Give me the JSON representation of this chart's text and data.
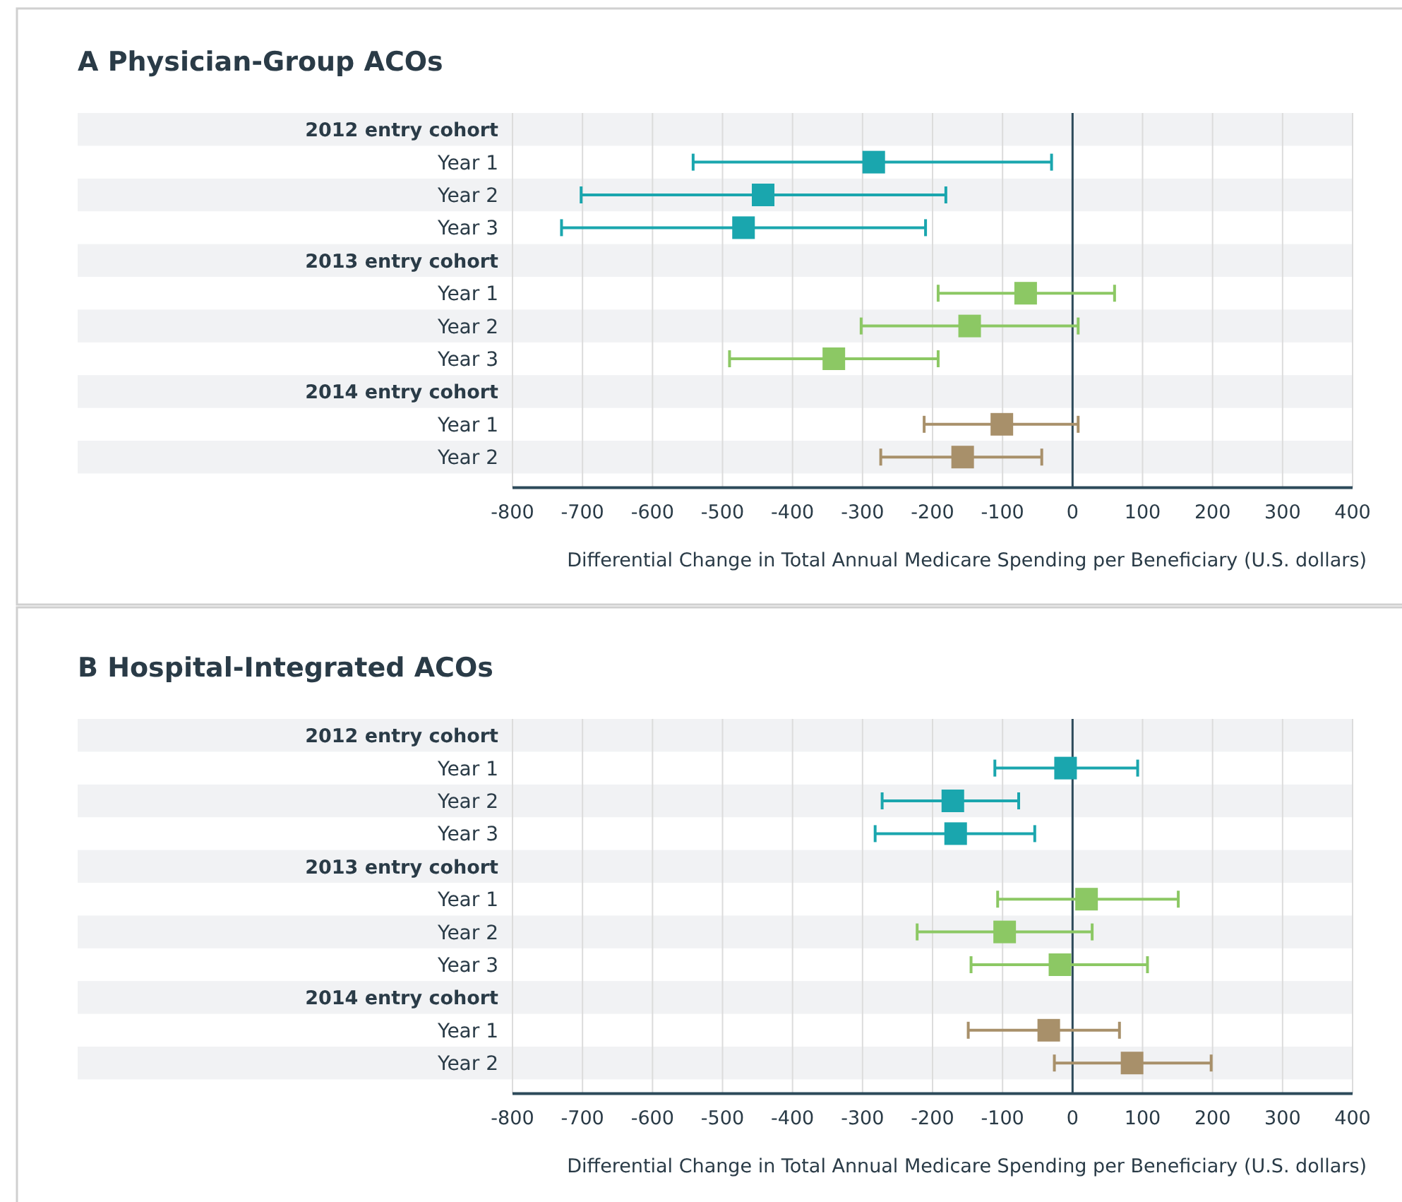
{
  "chart_data": [
    {
      "type": "scatter",
      "orientation": "horizontal",
      "title": "A Physician-Group ACOs",
      "xlabel": "Differential Change in Total Annual Medicare Spending per Beneficiary (U.S. dollars)",
      "categories": [
        "2012 entry cohort",
        "Year 1",
        "Year 2",
        "Year 3",
        "2013 entry cohort",
        "Year 1",
        "Year 2",
        "Year 3",
        "2014 entry cohort",
        "Year 1",
        "Year 2"
      ],
      "series": [
        {
          "color": "#1aa6ae",
          "values": [
            null,
            -284,
            -442,
            -470,
            null,
            null,
            null,
            null,
            null,
            null,
            null
          ],
          "errors": [
            null,
            [
              -542,
              -30
            ],
            [
              -702,
              -181
            ],
            [
              -730,
              -210
            ],
            null,
            null,
            null,
            null,
            null,
            null,
            null
          ]
        },
        {
          "color": "#8cc864",
          "values": [
            null,
            null,
            null,
            null,
            null,
            -67,
            -147,
            -341,
            null,
            null,
            null
          ],
          "errors": [
            null,
            null,
            null,
            null,
            null,
            [
              -192,
              60
            ],
            [
              -302,
              8
            ],
            [
              -490,
              -192
            ],
            null,
            null,
            null
          ]
        },
        {
          "color": "#a8906a",
          "values": [
            null,
            null,
            null,
            null,
            null,
            null,
            null,
            null,
            null,
            -101,
            -157
          ],
          "errors": [
            null,
            null,
            null,
            null,
            null,
            null,
            null,
            null,
            null,
            [
              -212,
              8
            ],
            [
              -274,
              -44
            ]
          ]
        }
      ],
      "xlim": [
        -800,
        400
      ],
      "xticks": [
        -800,
        -700,
        -600,
        -500,
        -400,
        -300,
        -200,
        -100,
        0,
        100,
        200,
        300,
        400
      ],
      "grid": "x",
      "marker": "square",
      "legend": false,
      "ref_lines": [
        {
          "axis": "x",
          "value": 0,
          "color": "#2d4a5a"
        }
      ]
    },
    {
      "type": "scatter",
      "orientation": "horizontal",
      "title": "B Hospital-Integrated ACOs",
      "xlabel": "Differential Change in Total Annual Medicare Spending per Beneficiary (U.S. dollars)",
      "categories": [
        "2012 entry cohort",
        "Year 1",
        "Year 2",
        "Year 3",
        "2013 entry cohort",
        "Year 1",
        "Year 2",
        "Year 3",
        "2014 entry cohort",
        "Year 1",
        "Year 2"
      ],
      "series": [
        {
          "color": "#1aa6ae",
          "values": [
            null,
            -10,
            -171,
            -167,
            null,
            null,
            null,
            null,
            null,
            null,
            null
          ],
          "errors": [
            null,
            [
              -111,
              93
            ],
            [
              -272,
              -77
            ],
            [
              -282,
              -54
            ],
            null,
            null,
            null,
            null,
            null,
            null,
            null
          ]
        },
        {
          "color": "#8cc864",
          "values": [
            null,
            null,
            null,
            null,
            null,
            20,
            -97,
            -18,
            null,
            null,
            null
          ],
          "errors": [
            null,
            null,
            null,
            null,
            null,
            [
              -107,
              151
            ],
            [
              -222,
              28
            ],
            [
              -145,
              107
            ],
            null,
            null,
            null
          ]
        },
        {
          "color": "#a8906a",
          "values": [
            null,
            null,
            null,
            null,
            null,
            null,
            null,
            null,
            null,
            -34,
            85
          ],
          "errors": [
            null,
            null,
            null,
            null,
            null,
            null,
            null,
            null,
            null,
            [
              -149,
              67
            ],
            [
              -26,
              198
            ]
          ]
        }
      ],
      "xlim": [
        -800,
        400
      ],
      "xticks": [
        -800,
        -700,
        -600,
        -500,
        -400,
        -300,
        -200,
        -100,
        0,
        100,
        200,
        300,
        400
      ],
      "grid": "x",
      "marker": "square",
      "legend": false,
      "ref_lines": [
        {
          "axis": "x",
          "value": 0,
          "color": "#2d4a5a"
        }
      ]
    }
  ]
}
